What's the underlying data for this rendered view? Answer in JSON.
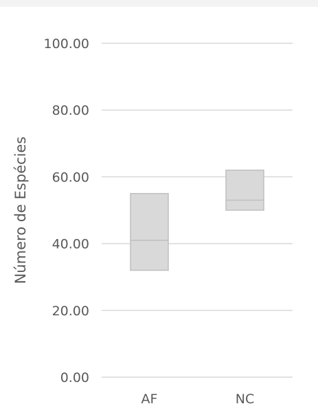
{
  "chart_data": {
    "type": "box",
    "title": "",
    "xlabel": "",
    "ylabel": "Número de Espécies",
    "ylim": [
      0,
      100
    ],
    "yticks": [
      "0.00",
      "20.00",
      "40.00",
      "60.00",
      "80.00",
      "100.00"
    ],
    "yticks_values": [
      0,
      20,
      40,
      60,
      80,
      100
    ],
    "grid": true,
    "categories": [
      "AF",
      "NC"
    ],
    "boxes": [
      {
        "category": "AF",
        "q1": 32,
        "median": 41,
        "q3": 55
      },
      {
        "category": "NC",
        "q1": 50,
        "median": 53,
        "q3": 62
      }
    ],
    "colors": {
      "box_fill": "#d9d9d9",
      "box_stroke": "#bfbfbf",
      "grid": "#d9d9d9",
      "text": "#595959"
    }
  }
}
